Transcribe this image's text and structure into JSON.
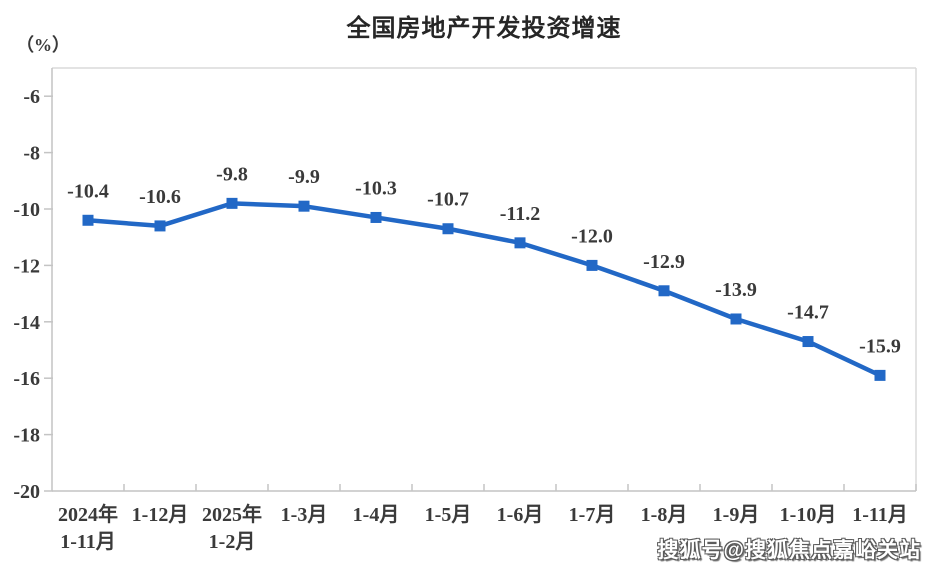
{
  "page": {
    "background_color": "#ffffff"
  },
  "chart_data": {
    "type": "line",
    "title": "全国房地产开发投资增速",
    "unit_label": "（%）",
    "categories": [
      "2024年\n1-11月",
      "1-12月",
      "2025年\n1-2月",
      "1-3月",
      "1-4月",
      "1-5月",
      "1-6月",
      "1-7月",
      "1-8月",
      "1-9月",
      "1-10月",
      "1-11月"
    ],
    "values": [
      -10.4,
      -10.6,
      -9.8,
      -9.9,
      -10.3,
      -10.7,
      -11.2,
      -12.0,
      -12.9,
      -13.9,
      -14.7,
      -15.9
    ],
    "data_labels": [
      "-10.4",
      "-10.6",
      "-9.8",
      "-9.9",
      "-10.3",
      "-10.7",
      "-11.2",
      "-12.0",
      "-12.9",
      "-13.9",
      "-14.7",
      "-15.9"
    ],
    "xlabel": "",
    "ylabel": "（%）",
    "yticks": [
      -6,
      -8,
      -10,
      -12,
      -14,
      -16,
      -18,
      -20
    ],
    "ylim": [
      -20,
      -5
    ],
    "grid": false,
    "legend_position": "none",
    "series_color": "#2268C6",
    "marker_shape": "square",
    "axis_color": "#c4c4c4",
    "border_color": "#dadada",
    "label_color": "#3a3a3a"
  },
  "watermark": {
    "text": "搜狐号@搜狐焦点嘉峪关站"
  }
}
